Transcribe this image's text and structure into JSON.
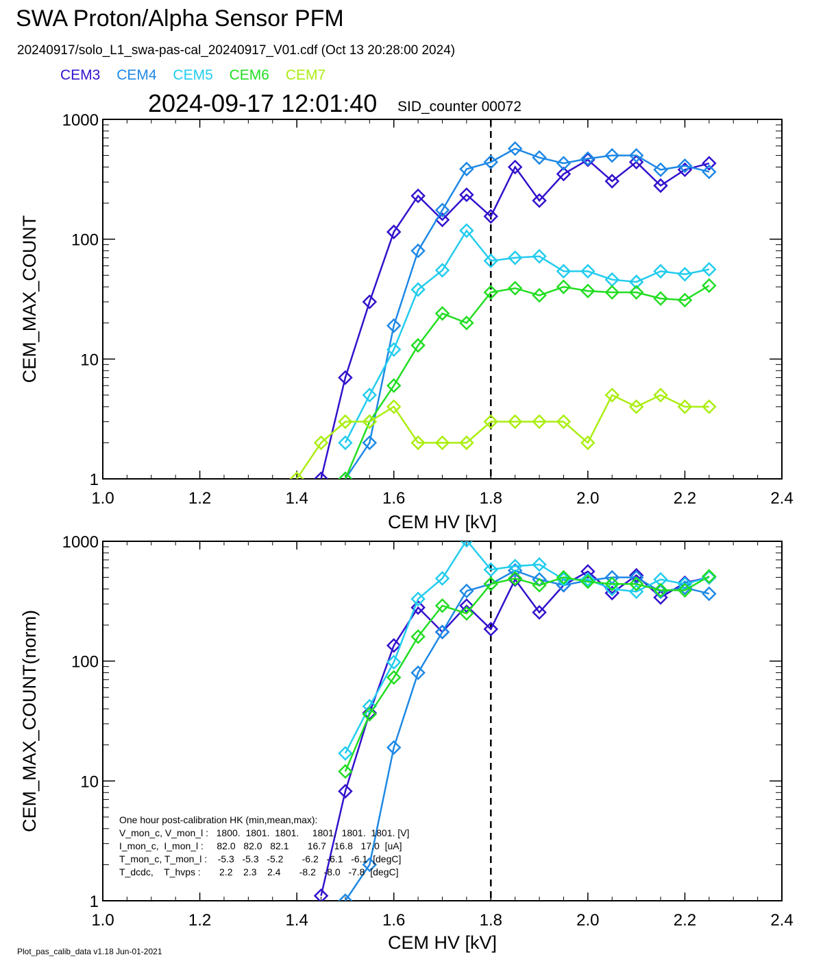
{
  "header": {
    "title": "SWA Proton/Alpha Sensor PFM",
    "subtitle": "20240917/solo_L1_swa-pas-cal_20240917_V01.cdf  (Oct 13 20:28:00 2024)",
    "timestamp": "2024-09-17 12:01:40",
    "sid_counter": "SID_counter 00072"
  },
  "legend": [
    {
      "label": "CEM3",
      "color": "#3311cc"
    },
    {
      "label": "CEM4",
      "color": "#1e88e5"
    },
    {
      "label": "CEM5",
      "color": "#22ccee"
    },
    {
      "label": "CEM6",
      "color": "#22dd22"
    },
    {
      "label": "CEM7",
      "color": "#aaee11"
    }
  ],
  "footer": "Plot_pas_calib_data v1.18 Jun-01-2021",
  "hk_box": {
    "line1": "One hour post-calibration HK (min,mean,max):",
    "line2": "V_mon_c, V_mon_l :   1800.  1801.  1801.     1801.  1801.  1801. [V]",
    "line3": "I_mon_c,  I_mon_l :     82.0   82.0   82.1       16.7   16.8   17.0  [uA]",
    "line4": "T_mon_c, T_mon_l :    -5.3   -5.3   -5.2       -6.2   -6.1   -6.1  [degC]",
    "line5": "T_dcdc,    T_hvps :       2.2    2.3    2.4       -8.2   -8.0   -7.8  [degC]"
  },
  "chart_data": [
    {
      "type": "line",
      "ylabel": "CEM_MAX_COUNT",
      "xlabel": "CEM HV [kV]",
      "xlim": [
        1.0,
        2.4
      ],
      "ylim": [
        1,
        1000
      ],
      "yscale": "log",
      "xticks": [
        "1.0",
        "1.2",
        "1.4",
        "1.6",
        "1.8",
        "2.0",
        "2.2",
        "2.4"
      ],
      "yticks": [
        "1",
        "10",
        "100",
        "1000"
      ],
      "marker": "diamond",
      "reference_line_x": 1.8,
      "series": [
        {
          "name": "CEM3",
          "x": [
            1.45,
            1.5,
            1.55,
            1.6,
            1.65,
            1.7,
            1.75,
            1.8,
            1.85,
            1.9,
            1.95,
            2.0,
            2.05,
            2.1,
            2.15,
            2.2,
            2.25
          ],
          "values": [
            1,
            7,
            30,
            115,
            230,
            145,
            235,
            155,
            400,
            210,
            350,
            460,
            305,
            440,
            280,
            380,
            430
          ]
        },
        {
          "name": "CEM4",
          "x": [
            1.5,
            1.55,
            1.6,
            1.65,
            1.7,
            1.75,
            1.8,
            1.85,
            1.9,
            1.95,
            2.0,
            2.05,
            2.1,
            2.15,
            2.2,
            2.25
          ],
          "values": [
            1,
            2,
            19,
            80,
            175,
            385,
            440,
            570,
            480,
            430,
            470,
            500,
            500,
            380,
            410,
            365
          ]
        },
        {
          "name": "CEM5",
          "x": [
            1.5,
            1.55,
            1.6,
            1.65,
            1.7,
            1.75,
            1.8,
            1.85,
            1.9,
            1.95,
            2.0,
            2.05,
            2.1,
            2.15,
            2.2,
            2.25
          ],
          "values": [
            2,
            5,
            12,
            38,
            55,
            118,
            66,
            70,
            72,
            54,
            54,
            46,
            44,
            54,
            51,
            56
          ]
        },
        {
          "name": "CEM6",
          "x": [
            1.5,
            1.55,
            1.6,
            1.65,
            1.7,
            1.75,
            1.8,
            1.85,
            1.9,
            1.95,
            2.0,
            2.05,
            2.1,
            2.15,
            2.2,
            2.25
          ],
          "values": [
            1,
            3,
            6,
            13,
            24,
            20,
            36,
            39,
            34,
            40,
            37,
            36,
            36,
            32,
            31,
            41
          ]
        },
        {
          "name": "CEM7",
          "x": [
            1.4,
            1.45,
            1.5,
            1.55,
            1.6,
            1.65,
            1.7,
            1.75,
            1.8,
            1.85,
            1.9,
            1.95,
            2.0,
            2.05,
            2.1,
            2.15,
            2.2,
            2.25
          ],
          "values": [
            1,
            2,
            3,
            3,
            4,
            2,
            2,
            2,
            3,
            3,
            3,
            3,
            2,
            5,
            4,
            5,
            4,
            4
          ]
        }
      ]
    },
    {
      "type": "line",
      "ylabel": "CEM_MAX_COUNT(norm)",
      "xlabel": "CEM HV [kV]",
      "xlim": [
        1.0,
        2.4
      ],
      "ylim": [
        1,
        1000
      ],
      "yscale": "log",
      "xticks": [
        "1.0",
        "1.2",
        "1.4",
        "1.6",
        "1.8",
        "2.0",
        "2.2",
        "2.4"
      ],
      "yticks": [
        "1",
        "10",
        "100",
        "1000"
      ],
      "marker": "diamond",
      "reference_line_x": 1.8,
      "series": [
        {
          "name": "CEM3",
          "x": [
            1.45,
            1.5,
            1.55,
            1.6,
            1.65,
            1.7,
            1.75,
            1.8,
            1.85,
            1.9,
            1.95,
            2.0,
            2.05,
            2.1,
            2.15,
            2.2,
            2.25
          ],
          "values": [
            1.1,
            8.2,
            37,
            135,
            280,
            175,
            290,
            185,
            480,
            255,
            430,
            560,
            370,
            520,
            340,
            450,
            500
          ]
        },
        {
          "name": "CEM4",
          "x": [
            1.5,
            1.55,
            1.6,
            1.65,
            1.7,
            1.75,
            1.8,
            1.85,
            1.9,
            1.95,
            2.0,
            2.05,
            2.1,
            2.15,
            2.2,
            2.25
          ],
          "values": [
            1,
            2,
            19,
            80,
            175,
            385,
            440,
            570,
            480,
            430,
            470,
            500,
            500,
            380,
            410,
            365
          ]
        },
        {
          "name": "CEM5",
          "x": [
            1.5,
            1.55,
            1.6,
            1.65,
            1.7,
            1.75,
            1.8,
            1.85,
            1.9,
            1.95,
            2.0,
            2.05,
            2.1,
            2.15,
            2.2,
            2.25
          ],
          "values": [
            17,
            42,
            98,
            330,
            490,
            1020,
            580,
            620,
            640,
            480,
            480,
            400,
            380,
            480,
            440,
            500
          ]
        },
        {
          "name": "CEM6",
          "x": [
            1.5,
            1.55,
            1.6,
            1.65,
            1.7,
            1.75,
            1.8,
            1.85,
            1.9,
            1.95,
            2.0,
            2.05,
            2.1,
            2.15,
            2.2,
            2.25
          ],
          "values": [
            12,
            36,
            73,
            160,
            290,
            250,
            440,
            490,
            430,
            500,
            460,
            440,
            440,
            390,
            390,
            510
          ]
        }
      ]
    }
  ]
}
